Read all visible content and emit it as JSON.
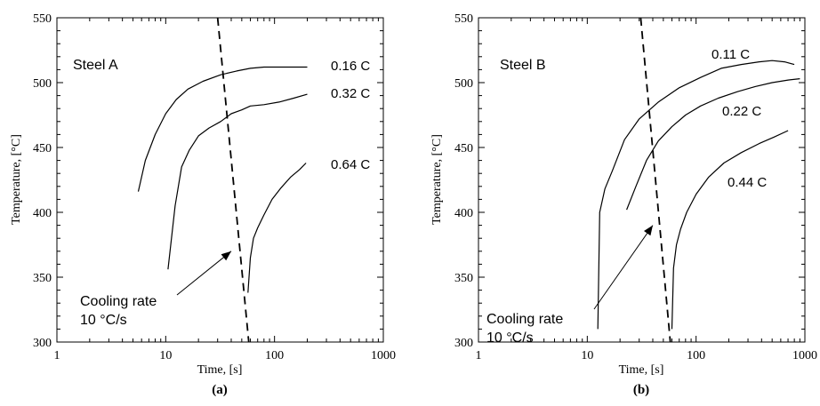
{
  "chart_data": [
    {
      "type": "line",
      "panel_label": "(a)",
      "steel_label": "Steel A",
      "xlabel": "Time, [s]",
      "ylabel": "Temperature, [°C]",
      "x_scale": "log",
      "xlim": [
        1,
        1000
      ],
      "ylim": [
        300,
        550
      ],
      "x_ticks": [
        1,
        10,
        100,
        1000
      ],
      "x_tick_labels": [
        "1",
        "10",
        "100",
        "1000"
      ],
      "y_ticks": [
        300,
        350,
        400,
        450,
        500,
        550
      ],
      "y_tick_labels": [
        "300",
        "350",
        "400",
        "450",
        "500",
        "550"
      ],
      "series": [
        {
          "name": "0.16 C",
          "x": [
            5.6,
            6.5,
            8,
            10,
            12.5,
            16,
            22,
            32,
            45,
            60,
            80,
            110,
            150,
            200
          ],
          "y": [
            416,
            440,
            460,
            476,
            487,
            495,
            501,
            506,
            509,
            511,
            512,
            512,
            512,
            512
          ]
        },
        {
          "name": "0.32 C",
          "x": [
            10.5,
            12.2,
            14,
            16.5,
            20,
            25,
            32,
            40,
            50,
            60,
            80,
            110,
            150,
            200
          ],
          "y": [
            356,
            405,
            435,
            448,
            459,
            465,
            470,
            476,
            479,
            482,
            483,
            485,
            488,
            491
          ]
        },
        {
          "name": "0.64 C",
          "x": [
            57,
            60,
            64,
            70,
            80,
            95,
            115,
            140,
            170,
            195
          ],
          "y": [
            338,
            365,
            380,
            388,
            398,
            410,
            419,
            427,
            433,
            438
          ]
        }
      ],
      "cooling_line": {
        "x": [
          30,
          58
        ],
        "y": [
          558,
          300
        ]
      },
      "annotation": {
        "lines": [
          "Cooling rate",
          "10 °C/s"
        ],
        "arrow_to": [
          40,
          370
        ]
      }
    },
    {
      "type": "line",
      "panel_label": "(b)",
      "steel_label": "Steel B",
      "xlabel": "Time, [s]",
      "ylabel": "Temperature, [°C]",
      "x_scale": "log",
      "xlim": [
        1,
        1000
      ],
      "ylim": [
        300,
        550
      ],
      "x_ticks": [
        1,
        10,
        100,
        1000
      ],
      "x_tick_labels": [
        "1",
        "10",
        "100",
        "1000"
      ],
      "y_ticks": [
        300,
        350,
        400,
        450,
        500,
        550
      ],
      "y_tick_labels": [
        "300",
        "350",
        "400",
        "450",
        "500",
        "550"
      ],
      "series": [
        {
          "name": "0.11 C",
          "x": [
            12.5,
            13,
            14.5,
            17,
            22,
            30,
            45,
            70,
            110,
            170,
            260,
            380,
            500,
            650,
            800
          ],
          "y": [
            310,
            400,
            418,
            432,
            456,
            472,
            485,
            496,
            504,
            511,
            514,
            516,
            517,
            516,
            514
          ]
        },
        {
          "name": "0.22 C",
          "x": [
            23,
            28,
            35,
            45,
            60,
            80,
            110,
            160,
            240,
            350,
            500,
            700,
            900
          ],
          "y": [
            402,
            420,
            440,
            455,
            466,
            475,
            482,
            488,
            493,
            497,
            500,
            502,
            503
          ]
        },
        {
          "name": "0.44 C",
          "x": [
            60,
            62,
            66,
            72,
            82,
            100,
            130,
            180,
            260,
            380,
            520,
            700
          ],
          "y": [
            310,
            357,
            375,
            387,
            400,
            414,
            427,
            438,
            446,
            453,
            458,
            463
          ]
        }
      ],
      "cooling_line": {
        "x": [
          31,
          58
        ],
        "y": [
          558,
          300
        ]
      },
      "annotation": {
        "lines": [
          "Cooling rate",
          "10 °C/s"
        ],
        "arrow_to": [
          40,
          390
        ]
      }
    }
  ]
}
